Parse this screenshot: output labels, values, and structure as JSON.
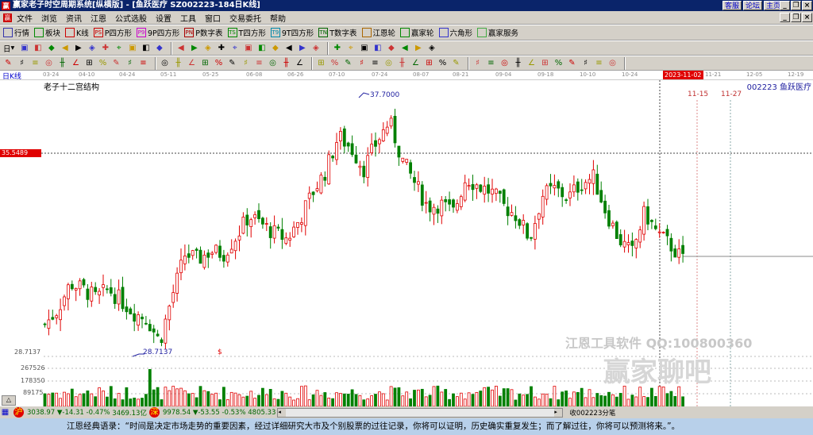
{
  "window": {
    "title": "赢家老子时空周期系统[纵横版] - [鱼跃医疗   SZ002223-184日K线]",
    "links": [
      "客服",
      "论坛",
      "主页"
    ]
  },
  "menu": [
    "文件",
    "浏览",
    "资讯",
    "江恩",
    "公式选股",
    "设置",
    "工具",
    "窗口",
    "交易委托",
    "帮助"
  ],
  "toolbar1": [
    {
      "icon": "quotes-icon",
      "label": "行情"
    },
    {
      "icon": "sector-icon",
      "label": "板块"
    },
    {
      "icon": "kline-icon",
      "label": "K线"
    },
    {
      "icon": "P4-icon",
      "badge": "PS",
      "label": "P四方形"
    },
    {
      "icon": "9P4-icon",
      "badge": "P9",
      "label": "9P四方形"
    },
    {
      "icon": "pnum-icon",
      "badge": "PN",
      "label": "P数字表"
    },
    {
      "icon": "T4-icon",
      "badge": "TS",
      "label": "T四方形"
    },
    {
      "icon": "9T4-icon",
      "badge": "T9",
      "label": "9T四方形"
    },
    {
      "icon": "tnum-icon",
      "badge": "TN",
      "label": "T数字表"
    },
    {
      "icon": "gann-wheel-icon",
      "label": "江恩轮"
    },
    {
      "icon": "winner-wheel-icon",
      "label": "赢家轮"
    },
    {
      "icon": "hexagon-icon",
      "label": "六角形"
    },
    {
      "icon": "dollar-icon",
      "label": "赢家服务"
    }
  ],
  "toolbar2_period": "日",
  "chart": {
    "period_label": "日K线",
    "indicator_title": "老子十二宫结构",
    "stock": "002223 鱼跃医疗",
    "date_ticks": [
      "03-24",
      "04-10",
      "04-24",
      "05-11",
      "05-25",
      "06-08",
      "06-26",
      "07-10",
      "07-24",
      "08-07",
      "08-21",
      "09-04",
      "09-18",
      "10-10",
      "10-24",
      "2023-11-02",
      "11-21",
      "12-05",
      "12-19"
    ],
    "cursor_date": "2023-11-02",
    "cursor_price": "35.5489",
    "high_label": "37.7000",
    "low_label": "28.7137",
    "low_axis": "28.7137",
    "future_dates": [
      "11-15",
      "11-27"
    ],
    "volume_ticks": [
      "267526",
      "178350",
      "89175"
    ],
    "marker": "$",
    "colors": {
      "up": "#e00000",
      "down": "#008000",
      "cursor": "#e00000",
      "label": "#2020a0"
    }
  },
  "chart_data": {
    "type": "candlestick",
    "ylim": [
      28.7137,
      37.7
    ],
    "close_path": [
      29.8,
      30.3,
      31.2,
      31.0,
      30.7,
      31.0,
      30.6,
      30.2,
      30.0,
      29.2,
      30.8,
      32.2,
      32.0,
      32.3,
      32.2,
      32.8,
      33.5,
      33.2,
      32.9,
      32.7,
      33.4,
      34.3,
      35.0,
      36.2,
      35.8,
      35.1,
      36.0,
      36.7,
      35.4,
      34.6,
      33.8,
      33.9,
      33.6,
      34.8,
      34.5,
      34.3,
      33.8,
      33.5,
      32.7,
      34.2,
      34.4,
      34.1,
      34.6,
      34.8,
      33.6,
      32.7,
      32.2,
      33.6,
      32.9,
      32.5,
      32.0
    ]
  },
  "status": {
    "sh_index": "3038.97",
    "sh_change": "▼-14.31",
    "sh_pct": "-0.47%",
    "sh_amount": "3469.13亿",
    "sz_index": "9978.54",
    "sz_change": "▼-53.55",
    "sz_pct": "-0.53%",
    "sz_amount": "4805.33",
    "right": "收002223分笔"
  },
  "watermark": {
    "line1": "江恩工具软件   QQ:100800360",
    "line2": "赢家聊吧"
  },
  "quote": "江恩经典语录：“时间是决定市场走势的重要因素，经过详细研究大市及个别股票的过往记录，你将可以证明，历史确实重复发生；而了解过往，你将可以预测将来。”。"
}
